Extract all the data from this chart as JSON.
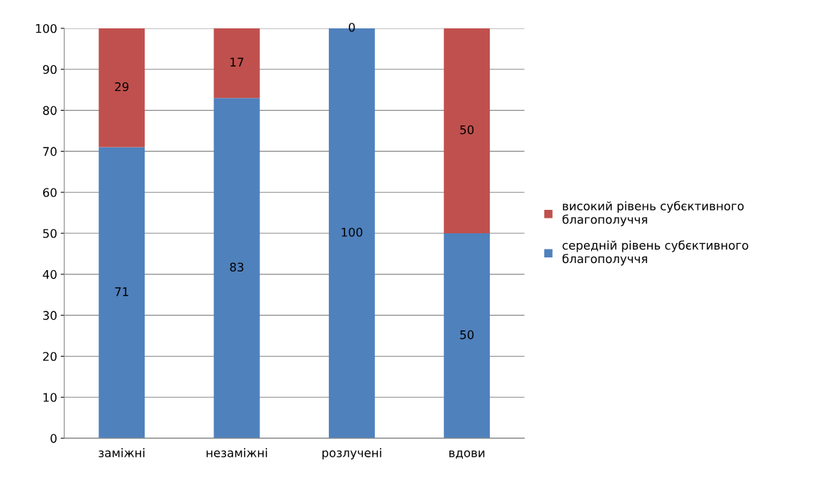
{
  "chart_data": {
    "type": "bar",
    "stacked": true,
    "categories": [
      "заміжні",
      "незаміжні",
      "розлучені",
      "вдови"
    ],
    "series": [
      {
        "name": "середній рівень субєктивного\nблагополуччя",
        "color": "#4f81bd",
        "values": [
          71,
          83,
          100,
          50
        ]
      },
      {
        "name": "високий рівень субєктивного\nблагополуччя",
        "color": "#c0504d",
        "values": [
          29,
          17,
          0,
          50
        ]
      }
    ],
    "ylim": [
      0,
      100
    ],
    "yticks": [
      0,
      10,
      20,
      30,
      40,
      50,
      60,
      70,
      80,
      90,
      100
    ],
    "grid": "y",
    "legend": "right",
    "data_labels": true
  }
}
